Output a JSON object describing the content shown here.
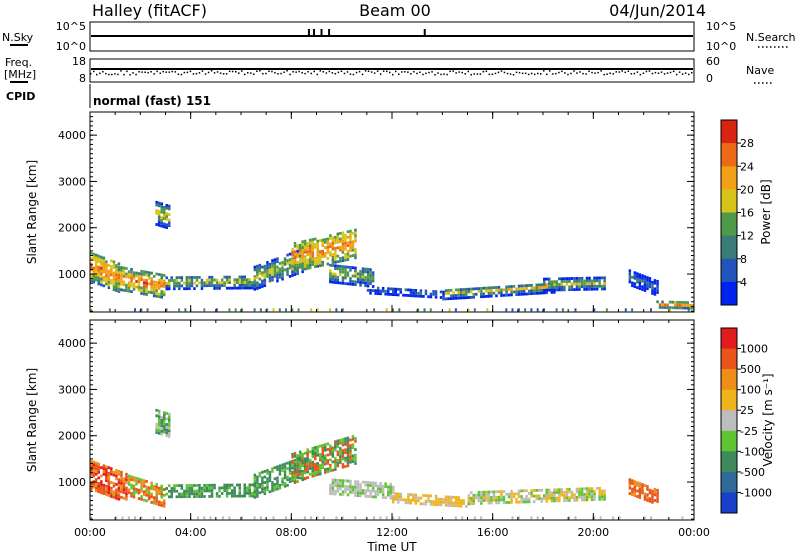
{
  "header": {
    "station": "Halley (fitACF)",
    "beam": "Beam 00",
    "date": "04/Jun/2014"
  },
  "top_panels": {
    "nsky_label": "N.Sky",
    "nsky_ticks": [
      "10^5",
      "10^0"
    ],
    "nsearch_label": "N.Search",
    "nsearch_ticks": [
      "10^5",
      "10^0"
    ],
    "freq_label_1": "Freq.",
    "freq_label_2": "[MHz]",
    "freq_ticks": [
      "18",
      "8"
    ],
    "nave_label": "Nave",
    "nave_ticks": [
      "60",
      "0"
    ],
    "cpid_label": "CPID",
    "cpid_text": "normal (fast) 151"
  },
  "chart_data": [
    {
      "type": "heatmap",
      "title": "",
      "xlabel": "",
      "ylabel": "Slant Range [km]",
      "x_ticks": [
        "00:00",
        "04:00",
        "08:00",
        "12:00",
        "16:00",
        "20:00",
        "00:00"
      ],
      "xlim": [
        0,
        24
      ],
      "y_ticks": [
        1000,
        2000,
        3000,
        4000
      ],
      "ylim": [
        180,
        4500
      ],
      "colorbar": {
        "label": "Power [dB]",
        "ticks": [
          "4",
          "8",
          "12",
          "16",
          "20",
          "24",
          "28"
        ],
        "colors": [
          "#0022ee",
          "#2255bb",
          "#3a7a77",
          "#4f9a4a",
          "#d8c418",
          "#f1a018",
          "#ec6a15",
          "#d82512"
        ]
      }
    },
    {
      "type": "heatmap",
      "title": "",
      "xlabel": "Time UT",
      "ylabel": "Slant Range [km]",
      "x_ticks": [
        "00:00",
        "04:00",
        "08:00",
        "12:00",
        "16:00",
        "20:00",
        "00:00"
      ],
      "xlim": [
        0,
        24
      ],
      "y_ticks": [
        1000,
        2000,
        3000,
        4000
      ],
      "ylim": [
        180,
        4500
      ],
      "colorbar": {
        "label": "Velocity [m s⁻¹]",
        "ticks": [
          "1000",
          "500",
          "100",
          "25",
          "-25",
          "-100",
          "-500",
          "-1000"
        ],
        "colors": [
          "#1a3fc8",
          "#2f6a9a",
          "#3e8a5a",
          "#5fc433",
          "#bdbdbd",
          "#f0b31b",
          "#ee8d18",
          "#e8541a",
          "#e21c1c"
        ]
      }
    }
  ]
}
